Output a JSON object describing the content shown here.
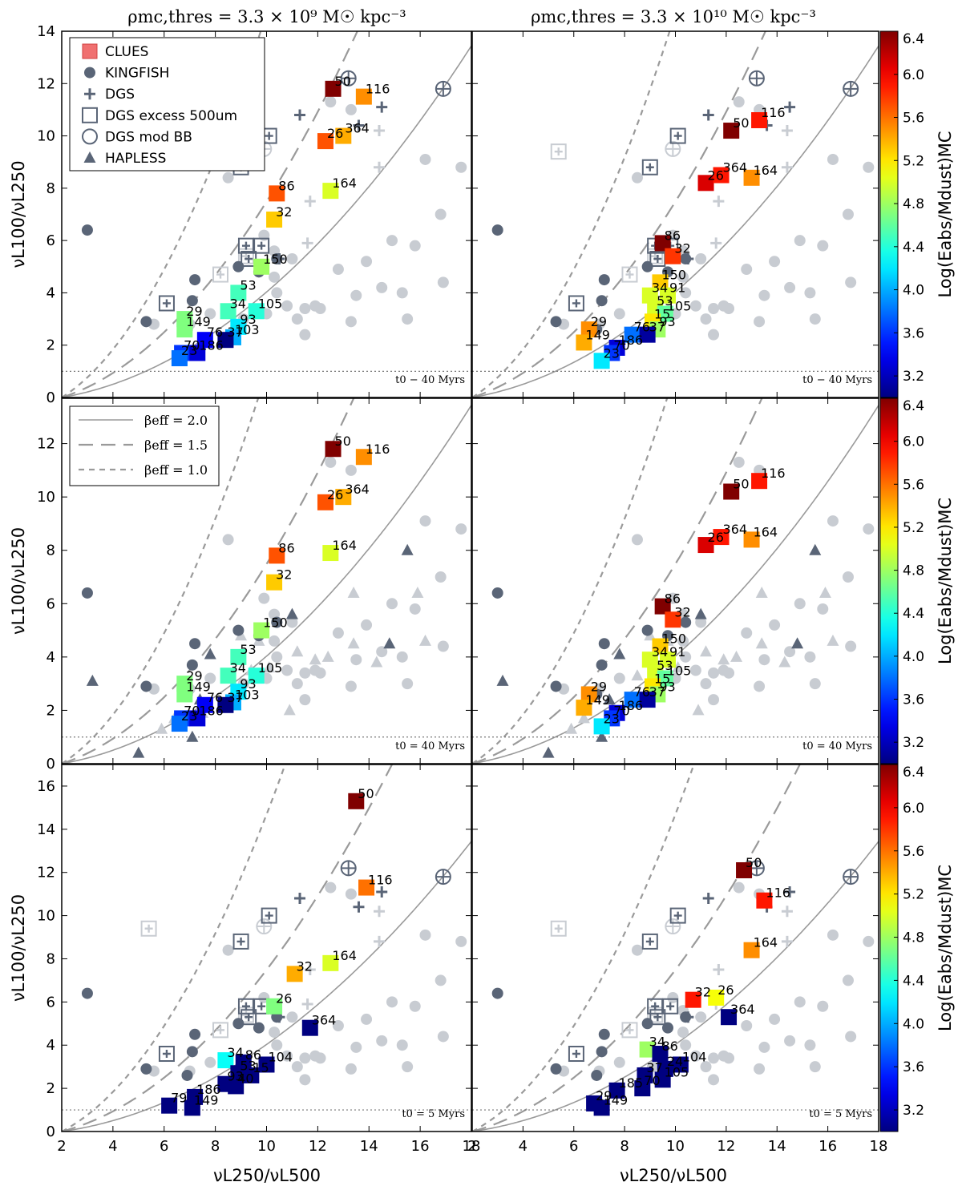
{
  "figure": {
    "column_titles": [
      "ρmc,thres = 3.3 × 10⁹ M☉ kpc⁻³",
      "ρmc,thres = 3.3 × 10¹⁰ M☉ kpc⁻³"
    ],
    "xlabel": "νL250/νL500",
    "ylabel": "νL100/νL250",
    "colorbar_label": "Log(Eabs/Mdust)MC",
    "colorbar_ticks": [
      "3.2",
      "3.6",
      "4.0",
      "4.4",
      "4.8",
      "5.2",
      "5.6",
      "6.0",
      "6.4"
    ],
    "x_ticks": [
      "2",
      "4",
      "6",
      "8",
      "10",
      "12",
      "14",
      "16",
      "18"
    ],
    "row_time_labels": [
      "t0 − 40 Myrs",
      "t0 = 40 Myrs",
      "t0 = 5 Myrs"
    ],
    "legend_markers": [
      {
        "label": "CLUES",
        "marker": "square-filled"
      },
      {
        "label": "KINGFISH",
        "marker": "circle"
      },
      {
        "label": "DGS",
        "marker": "plus"
      },
      {
        "label": "DGS excess 500um",
        "marker": "square-open"
      },
      {
        "label": "DGS mod BB",
        "marker": "circle-open"
      },
      {
        "label": "HAPLESS",
        "marker": "triangle"
      }
    ],
    "legend_lines": [
      {
        "label": "βeff = 2.0",
        "style": "solid"
      },
      {
        "label": "βeff = 1.5",
        "style": "long-dash"
      },
      {
        "label": "βeff = 1.0",
        "style": "short-dash"
      }
    ],
    "colors": {
      "observations": "#5a6577",
      "observations_faint": "#c8ccd2",
      "curve": "#9a9a9a"
    }
  },
  "chart_data": [
    {
      "type": "scatter",
      "panel": "row1-left",
      "time_label": "t0 − 40 Myrs",
      "xlim": [
        2,
        18
      ],
      "ylim": [
        0,
        14
      ],
      "yticks": [
        0,
        2,
        4,
        6,
        8,
        10,
        12,
        14
      ],
      "show_legend": "markers",
      "obs": "dgs",
      "points": [
        {
          "id": "50",
          "x": 12.6,
          "y": 11.8,
          "c": 6.4
        },
        {
          "id": "116",
          "x": 13.8,
          "y": 11.5,
          "c": 5.5
        },
        {
          "id": "26",
          "x": 12.3,
          "y": 9.8,
          "c": 5.7
        },
        {
          "id": "364",
          "x": 13.0,
          "y": 10.0,
          "c": 5.4
        },
        {
          "id": "86",
          "x": 10.4,
          "y": 7.8,
          "c": 5.7
        },
        {
          "id": "164",
          "x": 12.5,
          "y": 7.9,
          "c": 5.0
        },
        {
          "id": "32",
          "x": 10.3,
          "y": 6.8,
          "c": 5.3
        },
        {
          "id": "150",
          "x": 9.8,
          "y": 5.0,
          "c": 4.8
        },
        {
          "id": "53",
          "x": 8.9,
          "y": 4.0,
          "c": 4.5
        },
        {
          "id": "34",
          "x": 8.5,
          "y": 3.3,
          "c": 4.5
        },
        {
          "id": "105",
          "x": 9.6,
          "y": 3.3,
          "c": 4.4
        },
        {
          "id": "29",
          "x": 6.8,
          "y": 3.0,
          "c": 4.7
        },
        {
          "id": "149",
          "x": 6.8,
          "y": 2.6,
          "c": 4.7
        },
        {
          "id": "93",
          "x": 8.9,
          "y": 2.7,
          "c": 4.2
        },
        {
          "id": "103",
          "x": 8.7,
          "y": 2.3,
          "c": 4.0
        },
        {
          "id": "76",
          "x": 7.6,
          "y": 2.2,
          "c": 3.4
        },
        {
          "id": "37",
          "x": 8.4,
          "y": 2.2,
          "c": 3.0
        },
        {
          "id": "70",
          "x": 6.7,
          "y": 1.7,
          "c": 3.6
        },
        {
          "id": "186",
          "x": 7.3,
          "y": 1.7,
          "c": 3.3
        },
        {
          "id": "23",
          "x": 6.6,
          "y": 1.5,
          "c": 3.8
        }
      ]
    },
    {
      "type": "scatter",
      "panel": "row1-right",
      "time_label": "t0 − 40 Myrs",
      "xlim": [
        2,
        18
      ],
      "ylim": [
        0,
        14
      ],
      "yticks": [
        0,
        2,
        4,
        6,
        8,
        10,
        12,
        14
      ],
      "obs": "dgs",
      "points": [
        {
          "id": "50",
          "x": 12.2,
          "y": 10.2,
          "c": 6.4
        },
        {
          "id": "116",
          "x": 13.3,
          "y": 10.6,
          "c": 5.9
        },
        {
          "id": "26",
          "x": 11.2,
          "y": 8.2,
          "c": 6.1
        },
        {
          "id": "364",
          "x": 11.8,
          "y": 8.5,
          "c": 5.9
        },
        {
          "id": "164",
          "x": 13.0,
          "y": 8.4,
          "c": 5.5
        },
        {
          "id": "86",
          "x": 9.5,
          "y": 5.9,
          "c": 6.4
        },
        {
          "id": "32",
          "x": 9.9,
          "y": 5.4,
          "c": 5.8
        },
        {
          "id": "150",
          "x": 9.4,
          "y": 4.4,
          "c": 5.3
        },
        {
          "id": "34",
          "x": 9.0,
          "y": 3.9,
          "c": 5.0
        },
        {
          "id": "91",
          "x": 9.7,
          "y": 3.9,
          "c": 5.0
        },
        {
          "id": "53",
          "x": 9.2,
          "y": 3.4,
          "c": 5.0
        },
        {
          "id": "105",
          "x": 9.6,
          "y": 3.2,
          "c": 4.6
        },
        {
          "id": "15",
          "x": 9.1,
          "y": 2.9,
          "c": 5.2
        },
        {
          "id": "93",
          "x": 9.3,
          "y": 2.6,
          "c": 4.8
        },
        {
          "id": "29",
          "x": 6.6,
          "y": 2.6,
          "c": 5.5
        },
        {
          "id": "149",
          "x": 6.4,
          "y": 2.1,
          "c": 5.4
        },
        {
          "id": "76",
          "x": 8.3,
          "y": 2.4,
          "c": 3.8
        },
        {
          "id": "37",
          "x": 8.9,
          "y": 2.4,
          "c": 3.1
        },
        {
          "id": "186",
          "x": 7.7,
          "y": 1.9,
          "c": 3.3
        },
        {
          "id": "70",
          "x": 7.5,
          "y": 1.7,
          "c": 3.6
        },
        {
          "id": "23",
          "x": 7.1,
          "y": 1.4,
          "c": 4.2
        }
      ]
    },
    {
      "type": "scatter",
      "panel": "row2-left",
      "time_label": "t0 = 40 Myrs",
      "xlim": [
        2,
        18
      ],
      "ylim": [
        0,
        13.7
      ],
      "yticks": [
        0,
        2,
        4,
        6,
        8,
        10,
        12
      ],
      "show_legend": "lines",
      "obs": "hapless",
      "points": [
        {
          "id": "50",
          "x": 12.6,
          "y": 11.8,
          "c": 6.4
        },
        {
          "id": "116",
          "x": 13.8,
          "y": 11.5,
          "c": 5.5
        },
        {
          "id": "26",
          "x": 12.3,
          "y": 9.8,
          "c": 5.7
        },
        {
          "id": "364",
          "x": 13.0,
          "y": 10.0,
          "c": 5.4
        },
        {
          "id": "86",
          "x": 10.4,
          "y": 7.8,
          "c": 5.7
        },
        {
          "id": "164",
          "x": 12.5,
          "y": 7.9,
          "c": 5.0
        },
        {
          "id": "32",
          "x": 10.3,
          "y": 6.8,
          "c": 5.3
        },
        {
          "id": "150",
          "x": 9.8,
          "y": 5.0,
          "c": 4.8
        },
        {
          "id": "53",
          "x": 8.9,
          "y": 4.0,
          "c": 4.5
        },
        {
          "id": "34",
          "x": 8.5,
          "y": 3.3,
          "c": 4.5
        },
        {
          "id": "105",
          "x": 9.6,
          "y": 3.3,
          "c": 4.4
        },
        {
          "id": "29",
          "x": 6.8,
          "y": 3.0,
          "c": 4.7
        },
        {
          "id": "149",
          "x": 6.8,
          "y": 2.6,
          "c": 4.7
        },
        {
          "id": "93",
          "x": 8.9,
          "y": 2.7,
          "c": 4.2
        },
        {
          "id": "103",
          "x": 8.7,
          "y": 2.3,
          "c": 4.0
        },
        {
          "id": "76",
          "x": 7.6,
          "y": 2.2,
          "c": 3.4
        },
        {
          "id": "37",
          "x": 8.4,
          "y": 2.2,
          "c": 3.0
        },
        {
          "id": "70",
          "x": 6.7,
          "y": 1.7,
          "c": 3.6
        },
        {
          "id": "186",
          "x": 7.3,
          "y": 1.7,
          "c": 3.3
        },
        {
          "id": "23",
          "x": 6.6,
          "y": 1.5,
          "c": 3.8
        }
      ]
    },
    {
      "type": "scatter",
      "panel": "row2-right",
      "time_label": "t0 = 40 Myrs",
      "xlim": [
        2,
        18
      ],
      "ylim": [
        0,
        13.7
      ],
      "yticks": [
        0,
        2,
        4,
        6,
        8,
        10,
        12
      ],
      "obs": "hapless",
      "points": [
        {
          "id": "50",
          "x": 12.2,
          "y": 10.2,
          "c": 6.4
        },
        {
          "id": "116",
          "x": 13.3,
          "y": 10.6,
          "c": 5.9
        },
        {
          "id": "26",
          "x": 11.2,
          "y": 8.2,
          "c": 6.1
        },
        {
          "id": "364",
          "x": 11.8,
          "y": 8.5,
          "c": 5.9
        },
        {
          "id": "164",
          "x": 13.0,
          "y": 8.4,
          "c": 5.5
        },
        {
          "id": "86",
          "x": 9.5,
          "y": 5.9,
          "c": 6.4
        },
        {
          "id": "32",
          "x": 9.9,
          "y": 5.4,
          "c": 5.8
        },
        {
          "id": "150",
          "x": 9.4,
          "y": 4.4,
          "c": 5.3
        },
        {
          "id": "34",
          "x": 9.0,
          "y": 3.9,
          "c": 5.0
        },
        {
          "id": "91",
          "x": 9.7,
          "y": 3.9,
          "c": 5.0
        },
        {
          "id": "53",
          "x": 9.2,
          "y": 3.4,
          "c": 5.0
        },
        {
          "id": "105",
          "x": 9.6,
          "y": 3.2,
          "c": 4.6
        },
        {
          "id": "15",
          "x": 9.1,
          "y": 2.9,
          "c": 5.2
        },
        {
          "id": "93",
          "x": 9.3,
          "y": 2.6,
          "c": 4.8
        },
        {
          "id": "29",
          "x": 6.6,
          "y": 2.6,
          "c": 5.5
        },
        {
          "id": "149",
          "x": 6.4,
          "y": 2.1,
          "c": 5.4
        },
        {
          "id": "76",
          "x": 8.3,
          "y": 2.4,
          "c": 3.8
        },
        {
          "id": "37",
          "x": 8.9,
          "y": 2.4,
          "c": 3.1
        },
        {
          "id": "186",
          "x": 7.7,
          "y": 1.9,
          "c": 3.3
        },
        {
          "id": "70",
          "x": 7.5,
          "y": 1.7,
          "c": 3.6
        },
        {
          "id": "23",
          "x": 7.1,
          "y": 1.4,
          "c": 4.2
        }
      ]
    },
    {
      "type": "scatter",
      "panel": "row3-left",
      "time_label": "t0 = 5 Myrs",
      "xlim": [
        2,
        18
      ],
      "ylim": [
        0,
        17
      ],
      "yticks": [
        0,
        2,
        4,
        6,
        8,
        10,
        12,
        14,
        16
      ],
      "obs": "dgs",
      "points": [
        {
          "id": "50",
          "x": 13.5,
          "y": 15.3,
          "c": 6.4
        },
        {
          "id": "116",
          "x": 13.9,
          "y": 11.3,
          "c": 5.6
        },
        {
          "id": "164",
          "x": 12.5,
          "y": 7.8,
          "c": 5.0
        },
        {
          "id": "32",
          "x": 11.1,
          "y": 7.3,
          "c": 5.4
        },
        {
          "id": "26",
          "x": 10.3,
          "y": 5.8,
          "c": 4.7
        },
        {
          "id": "364",
          "x": 11.7,
          "y": 4.8,
          "c": 3.0
        },
        {
          "id": "34",
          "x": 8.4,
          "y": 3.3,
          "c": 4.3
        },
        {
          "id": "86",
          "x": 9.1,
          "y": 3.2,
          "c": 3.0
        },
        {
          "id": "104",
          "x": 10.0,
          "y": 3.1,
          "c": 3.0
        },
        {
          "id": "53",
          "x": 8.9,
          "y": 2.7,
          "c": 3.0
        },
        {
          "id": "15",
          "x": 9.4,
          "y": 2.6,
          "c": 3.0
        },
        {
          "id": "40",
          "x": 8.8,
          "y": 2.1,
          "c": 3.0
        },
        {
          "id": "93",
          "x": 8.4,
          "y": 2.2,
          "c": 3.0
        },
        {
          "id": "186",
          "x": 7.2,
          "y": 1.6,
          "c": 3.0
        },
        {
          "id": "79",
          "x": 6.2,
          "y": 1.2,
          "c": 3.0
        },
        {
          "id": "149",
          "x": 7.1,
          "y": 1.1,
          "c": 3.0
        }
      ]
    },
    {
      "type": "scatter",
      "panel": "row3-right",
      "time_label": "t0 = 5 Myrs",
      "xlim": [
        2,
        18
      ],
      "ylim": [
        0,
        17
      ],
      "yticks": [
        0,
        2,
        4,
        6,
        8,
        10,
        12,
        14,
        16
      ],
      "obs": "dgs",
      "points": [
        {
          "id": "50",
          "x": 12.7,
          "y": 12.1,
          "c": 6.4
        },
        {
          "id": "116",
          "x": 13.5,
          "y": 10.7,
          "c": 5.9
        },
        {
          "id": "164",
          "x": 13.0,
          "y": 8.4,
          "c": 5.5
        },
        {
          "id": "32",
          "x": 10.7,
          "y": 6.1,
          "c": 5.9
        },
        {
          "id": "26",
          "x": 11.6,
          "y": 6.2,
          "c": 5.1
        },
        {
          "id": "364",
          "x": 12.1,
          "y": 5.3,
          "c": 3.0
        },
        {
          "id": "34",
          "x": 8.9,
          "y": 3.8,
          "c": 4.8
        },
        {
          "id": "86",
          "x": 9.4,
          "y": 3.6,
          "c": 3.0
        },
        {
          "id": "104",
          "x": 10.2,
          "y": 3.1,
          "c": 3.0
        },
        {
          "id": "24",
          "x": 9.6,
          "y": 2.9,
          "c": 3.0
        },
        {
          "id": "105",
          "x": 9.5,
          "y": 2.4,
          "c": 3.0
        },
        {
          "id": "37",
          "x": 8.8,
          "y": 2.6,
          "c": 3.0
        },
        {
          "id": "70",
          "x": 8.7,
          "y": 2.0,
          "c": 3.0
        },
        {
          "id": "185",
          "x": 7.7,
          "y": 1.9,
          "c": 3.0
        },
        {
          "id": "29",
          "x": 6.8,
          "y": 1.3,
          "c": 3.0
        },
        {
          "id": "149",
          "x": 7.1,
          "y": 1.1,
          "c": 3.0
        }
      ]
    }
  ]
}
